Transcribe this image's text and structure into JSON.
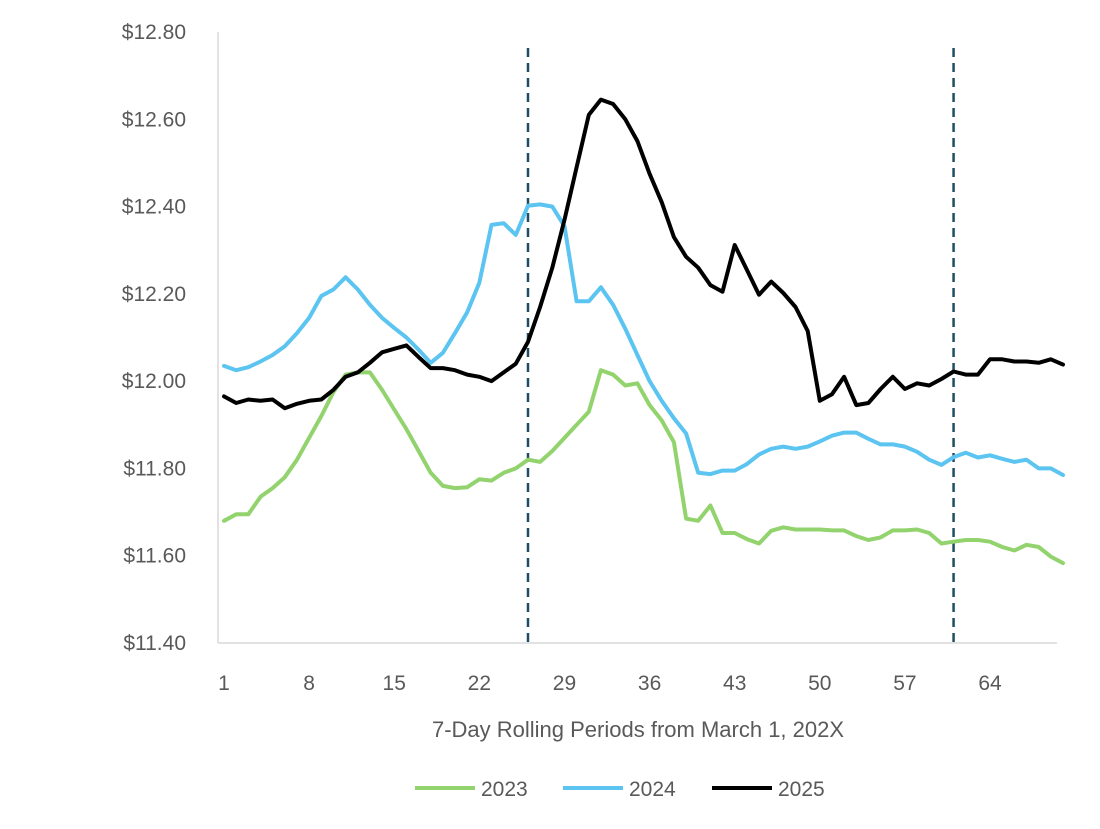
{
  "chart_data": {
    "type": "line",
    "title": "",
    "xlabel": "7-Day Rolling Periods from March 1, 202X",
    "ylabel": "",
    "xlim": [
      1,
      70
    ],
    "ylim": [
      11.4,
      12.8
    ],
    "grid": false,
    "legend_position": "bottom",
    "y_ticks": [
      {
        "value": 11.4,
        "label": "$11.40"
      },
      {
        "value": 11.6,
        "label": "$11.60"
      },
      {
        "value": 11.8,
        "label": "$11.80"
      },
      {
        "value": 12.0,
        "label": "$12.00"
      },
      {
        "value": 12.2,
        "label": "$12.20"
      },
      {
        "value": 12.4,
        "label": "$12.40"
      },
      {
        "value": 12.6,
        "label": "$12.60"
      },
      {
        "value": 12.8,
        "label": "$12.80"
      }
    ],
    "x_ticks": [
      {
        "value": 1,
        "label": "1"
      },
      {
        "value": 8,
        "label": "8"
      },
      {
        "value": 15,
        "label": "15"
      },
      {
        "value": 22,
        "label": "22"
      },
      {
        "value": 29,
        "label": "29"
      },
      {
        "value": 36,
        "label": "36"
      },
      {
        "value": 43,
        "label": "43"
      },
      {
        "value": 50,
        "label": "50"
      },
      {
        "value": 57,
        "label": "57"
      },
      {
        "value": 64,
        "label": "64"
      }
    ],
    "reference_lines_x": [
      26,
      61
    ],
    "series": [
      {
        "name": "2023",
        "color": "#92d36e",
        "values": [
          11.68,
          11.695,
          11.695,
          11.735,
          11.755,
          11.78,
          11.82,
          11.87,
          11.92,
          11.975,
          12.015,
          12.02,
          12.02,
          11.98,
          11.935,
          11.89,
          11.84,
          11.79,
          11.76,
          11.755,
          11.757,
          11.775,
          11.772,
          11.79,
          11.8,
          11.82,
          11.815,
          11.84,
          11.87,
          11.9,
          11.93,
          12.025,
          12.015,
          11.99,
          11.995,
          11.945,
          11.91,
          11.86,
          11.685,
          11.68,
          11.715,
          11.652,
          11.652,
          11.638,
          11.628,
          11.657,
          11.665,
          11.66,
          11.66,
          11.66,
          11.658,
          11.658,
          11.645,
          11.636,
          11.642,
          11.658,
          11.658,
          11.66,
          11.652,
          11.628,
          11.632,
          11.636,
          11.636,
          11.632,
          11.62,
          11.612,
          11.625,
          11.62,
          11.598,
          11.583
        ]
      },
      {
        "name": "2024",
        "color": "#5bc4f1",
        "values": [
          12.035,
          12.025,
          12.032,
          12.045,
          12.06,
          12.08,
          12.11,
          12.145,
          12.195,
          12.21,
          12.238,
          12.21,
          12.175,
          12.145,
          12.122,
          12.1,
          12.072,
          12.042,
          12.065,
          12.11,
          12.158,
          12.225,
          12.358,
          12.362,
          12.335,
          12.402,
          12.405,
          12.4,
          12.355,
          12.183,
          12.183,
          12.215,
          12.175,
          12.12,
          12.06,
          12.0,
          11.955,
          11.915,
          11.88,
          11.79,
          11.787,
          11.795,
          11.795,
          11.81,
          11.832,
          11.845,
          11.85,
          11.845,
          11.85,
          11.862,
          11.875,
          11.882,
          11.882,
          11.868,
          11.855,
          11.855,
          11.85,
          11.838,
          11.82,
          11.808,
          11.826,
          11.836,
          11.825,
          11.83,
          11.822,
          11.815,
          11.82,
          11.8,
          11.8,
          11.785
        ]
      },
      {
        "name": "2025",
        "color": "#000000",
        "values": [
          11.965,
          11.95,
          11.958,
          11.955,
          11.958,
          11.938,
          11.948,
          11.955,
          11.958,
          11.98,
          12.01,
          12.02,
          12.042,
          12.066,
          12.074,
          12.082,
          12.055,
          12.03,
          12.03,
          12.025,
          12.015,
          12.01,
          12.0,
          12.02,
          12.04,
          12.09,
          12.17,
          12.26,
          12.37,
          12.49,
          12.61,
          12.645,
          12.635,
          12.6,
          12.55,
          12.475,
          12.41,
          12.33,
          12.285,
          12.26,
          12.22,
          12.205,
          12.312,
          12.255,
          12.198,
          12.228,
          12.202,
          12.17,
          12.115,
          11.955,
          11.97,
          12.01,
          11.945,
          11.95,
          11.982,
          12.01,
          11.982,
          11.995,
          11.99,
          12.005,
          12.022,
          12.015,
          12.015,
          12.05,
          12.05,
          12.045,
          12.045,
          12.042,
          12.05,
          12.038
        ]
      }
    ]
  }
}
